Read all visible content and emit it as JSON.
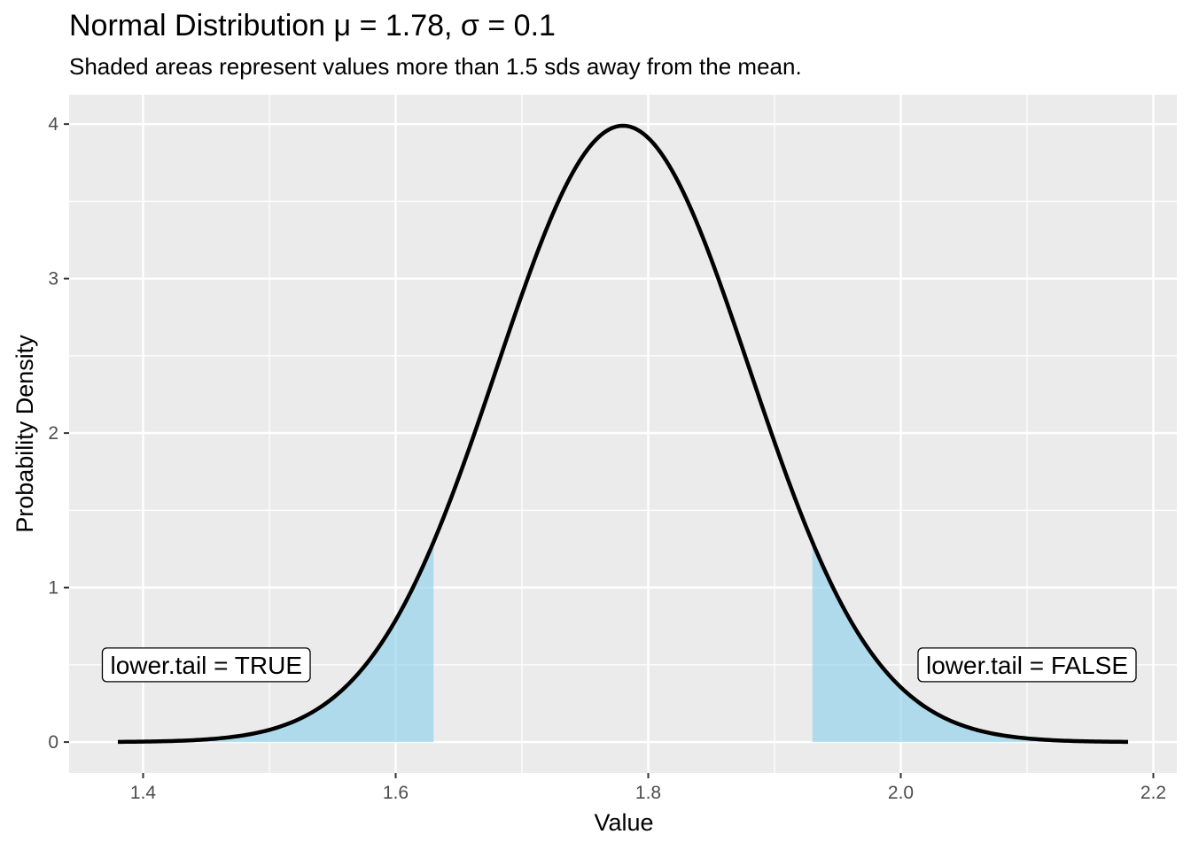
{
  "chart_data": {
    "type": "area",
    "title": "Normal Distribution μ = 1.78, σ = 0.1",
    "subtitle": "Shaded areas represent values more than 1.5 sds away from the mean.",
    "xlabel": "Value",
    "ylabel": "Probability Density",
    "mean": 1.78,
    "sd": 0.1,
    "curve_range": [
      1.38,
      2.18
    ],
    "xlim": [
      1.3414,
      2.2186
    ],
    "ylim": [
      -0.2,
      4.19
    ],
    "x_ticks": [
      1.4,
      1.6,
      1.8,
      2.0,
      2.2
    ],
    "x_tick_labels": [
      "1.4",
      "1.6",
      "1.8",
      "2.0",
      "2.2"
    ],
    "y_ticks": [
      0,
      1,
      2,
      3,
      4
    ],
    "y_tick_labels": [
      "0",
      "1",
      "2",
      "3",
      "4"
    ],
    "shaded_regions": [
      {
        "from": 1.38,
        "to": 1.63
      },
      {
        "from": 1.93,
        "to": 2.18
      }
    ],
    "annotations": [
      {
        "text": "lower.tail = TRUE",
        "x": 1.45,
        "y": 0.5
      },
      {
        "text": "lower.tail = FALSE",
        "x": 2.1,
        "y": 0.5
      }
    ],
    "grid": true,
    "colors": {
      "panel": "#ebebeb",
      "grid": "#ffffff",
      "line": "#000000",
      "fill": "#87ceeb"
    }
  }
}
